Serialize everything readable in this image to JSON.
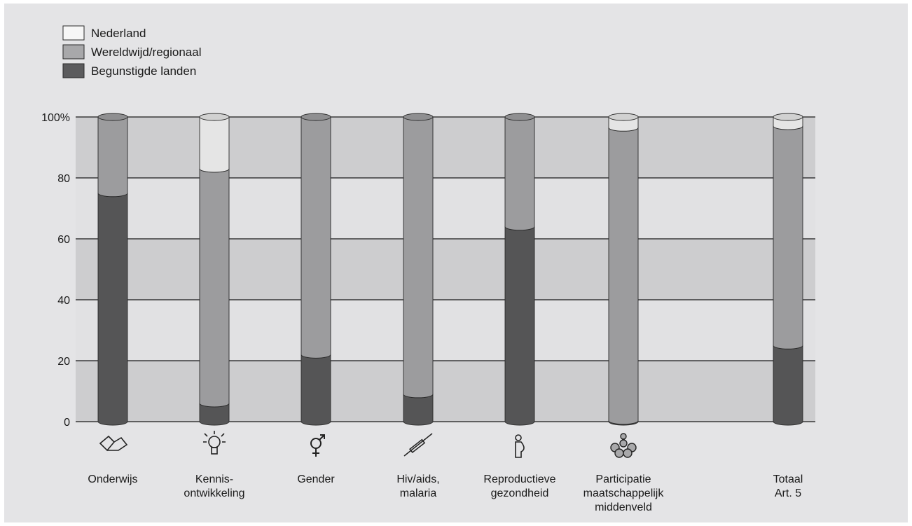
{
  "chart_data": {
    "type": "bar",
    "stacked": true,
    "categories": [
      [
        "Onderwijs"
      ],
      [
        "Kennis-",
        "ontwikkeling"
      ],
      [
        "Gender"
      ],
      [
        "Hiv/aids,",
        "malaria"
      ],
      [
        "Reproductieve",
        "gezondheid"
      ],
      [
        "Participatie",
        "maatschappelijk",
        "middenveld"
      ],
      [
        "Totaal",
        "Art. 5"
      ]
    ],
    "category_icons": [
      "book-icon",
      "lightbulb-icon",
      "gender-icon",
      "syringe-icon",
      "pregnancy-icon",
      "group-icon",
      null
    ],
    "series": [
      {
        "name": "Begunstigde landen",
        "color": "#5b5b5d",
        "values": [
          75,
          6,
          22,
          9,
          64,
          0.3,
          25
        ]
      },
      {
        "name": "Wereldwijd/regionaal",
        "color": "#a8a8aa",
        "values": [
          25,
          77,
          78,
          91,
          36,
          96.2,
          72
        ]
      },
      {
        "name": "Nederland",
        "color": "#f6f6f6",
        "values": [
          0,
          17,
          0,
          0,
          0,
          3.5,
          3
        ]
      }
    ],
    "legend_order": [
      "Nederland",
      "Wereldwijd/regionaal",
      "Begunstigde landen"
    ],
    "legend_position": "top-left",
    "y_ticks": [
      "0",
      "20",
      "40",
      "60",
      "80",
      "100%"
    ],
    "ylim": [
      0,
      100
    ],
    "band_colors": [
      "#cdcdcf",
      "#e1e1e3"
    ]
  }
}
